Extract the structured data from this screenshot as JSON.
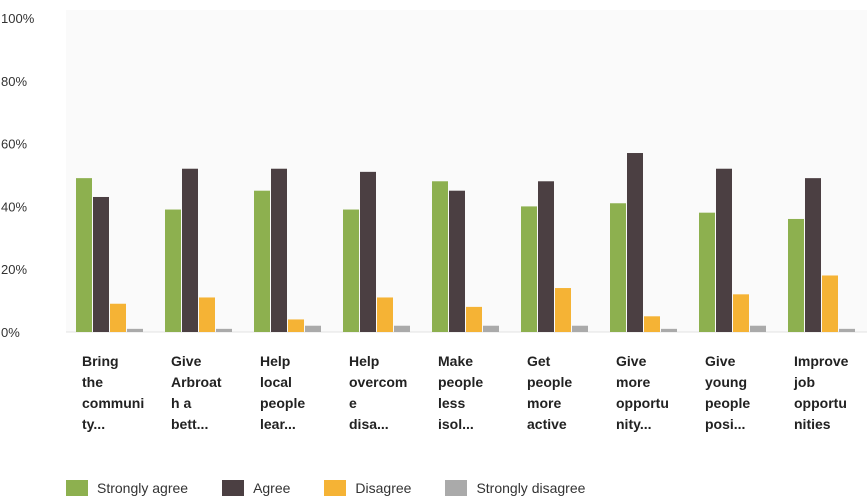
{
  "chart_data": {
    "type": "bar",
    "ylim": [
      0,
      100
    ],
    "yticks": [
      "0%",
      "20%",
      "40%",
      "60%",
      "80%",
      "100%"
    ],
    "categories": [
      [
        "Bring",
        "the",
        "communi",
        "ty..."
      ],
      [
        "Give",
        "Arbroat",
        "h a",
        "bett..."
      ],
      [
        "Help",
        "local",
        "people",
        "lear..."
      ],
      [
        "Help",
        "overcom",
        "e",
        "disa..."
      ],
      [
        "Make",
        "people",
        "less",
        "isol..."
      ],
      [
        "Get",
        "people",
        "more",
        "active"
      ],
      [
        "Give",
        "more",
        "opportu",
        "nity..."
      ],
      [
        "Give",
        "young",
        "people",
        "posi..."
      ],
      [
        "Improve",
        "job",
        "opportu",
        "nities"
      ]
    ],
    "series": [
      {
        "name": "Strongly agree",
        "color": "#8db04f",
        "values": [
          49,
          39,
          45,
          39,
          48,
          40,
          41,
          38,
          36
        ]
      },
      {
        "name": "Agree",
        "color": "#4b3f42",
        "values": [
          43,
          52,
          52,
          51,
          45,
          48,
          57,
          52,
          49
        ]
      },
      {
        "name": "Disagree",
        "color": "#f5b335",
        "values": [
          9,
          11,
          4,
          11,
          8,
          14,
          5,
          12,
          18
        ]
      },
      {
        "name": "Strongly disagree",
        "color": "#aaaaaa",
        "values": [
          1,
          1,
          2,
          2,
          2,
          2,
          1,
          2,
          1
        ]
      }
    ],
    "grid": false,
    "legend_position": "bottom"
  }
}
